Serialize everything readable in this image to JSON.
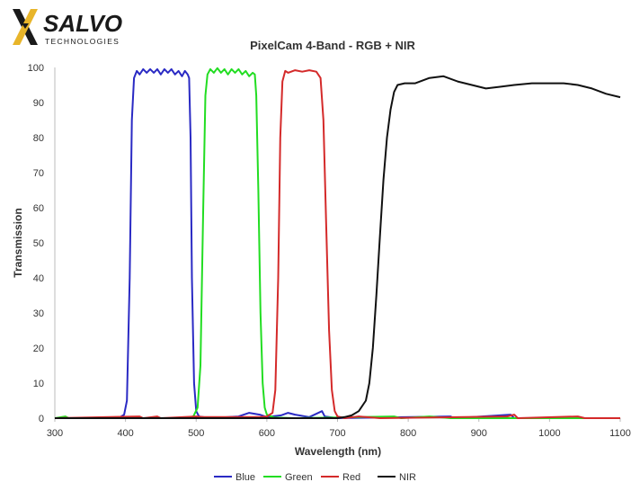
{
  "logo": {
    "brand": "SALVO",
    "sub": "TECHNOLOGIES",
    "accent_color": "#e8b52a",
    "dark_color": "#1a1a1a"
  },
  "chart_data": {
    "type": "line",
    "title": "PixelCam 4-Band - RGB + NIR",
    "xlabel": "Wavelength (nm)",
    "ylabel": "Transmission",
    "xlim": [
      300,
      1100
    ],
    "ylim": [
      0,
      100
    ],
    "x_ticks": [
      300,
      400,
      500,
      600,
      700,
      800,
      900,
      1000,
      1100
    ],
    "y_ticks": [
      0,
      10,
      20,
      30,
      40,
      50,
      60,
      70,
      80,
      90,
      100
    ],
    "grid": false,
    "legend_position": "bottom",
    "series": [
      {
        "name": "Blue",
        "color": "#2a2ac4",
        "points": [
          [
            300,
            0
          ],
          [
            390,
            0
          ],
          [
            398,
            1
          ],
          [
            402,
            5
          ],
          [
            406,
            40
          ],
          [
            409,
            85
          ],
          [
            412,
            97
          ],
          [
            416,
            99
          ],
          [
            420,
            98
          ],
          [
            425,
            99.5
          ],
          [
            430,
            98.5
          ],
          [
            435,
            99.5
          ],
          [
            440,
            98.5
          ],
          [
            445,
            99.5
          ],
          [
            450,
            98
          ],
          [
            455,
            99.5
          ],
          [
            460,
            98.5
          ],
          [
            465,
            99.5
          ],
          [
            470,
            98
          ],
          [
            475,
            99
          ],
          [
            480,
            97.5
          ],
          [
            484,
            99
          ],
          [
            488,
            98
          ],
          [
            490,
            97
          ],
          [
            492,
            80
          ],
          [
            494,
            40
          ],
          [
            497,
            10
          ],
          [
            500,
            2
          ],
          [
            504,
            0.5
          ],
          [
            520,
            0
          ],
          [
            560,
            0.5
          ],
          [
            575,
            1.5
          ],
          [
            590,
            1
          ],
          [
            600,
            0.3
          ],
          [
            620,
            0.8
          ],
          [
            630,
            1.5
          ],
          [
            640,
            1
          ],
          [
            660,
            0.3
          ],
          [
            678,
            2
          ],
          [
            682,
            0.5
          ],
          [
            700,
            0
          ],
          [
            860,
            0.5
          ],
          [
            865,
            0
          ],
          [
            945,
            1
          ],
          [
            950,
            0
          ],
          [
            1100,
            0
          ]
        ]
      },
      {
        "name": "Green",
        "color": "#22dd22",
        "points": [
          [
            300,
            0
          ],
          [
            315,
            0.5
          ],
          [
            320,
            0
          ],
          [
            480,
            0
          ],
          [
            496,
            0.5
          ],
          [
            502,
            3
          ],
          [
            506,
            15
          ],
          [
            510,
            60
          ],
          [
            513,
            92
          ],
          [
            516,
            98
          ],
          [
            520,
            99.5
          ],
          [
            525,
            98.5
          ],
          [
            530,
            99.8
          ],
          [
            535,
            98.5
          ],
          [
            540,
            99.5
          ],
          [
            545,
            98
          ],
          [
            550,
            99.5
          ],
          [
            555,
            98.5
          ],
          [
            560,
            99.5
          ],
          [
            565,
            98
          ],
          [
            570,
            99
          ],
          [
            575,
            97.5
          ],
          [
            580,
            98.5
          ],
          [
            583,
            98
          ],
          [
            585,
            92
          ],
          [
            588,
            65
          ],
          [
            591,
            30
          ],
          [
            594,
            10
          ],
          [
            597,
            3
          ],
          [
            600,
            1
          ],
          [
            610,
            0.2
          ],
          [
            640,
            0
          ],
          [
            780,
            0.5
          ],
          [
            790,
            0
          ],
          [
            830,
            0.5
          ],
          [
            860,
            0
          ],
          [
            1100,
            0
          ]
        ]
      },
      {
        "name": "Red",
        "color": "#d42a2a",
        "points": [
          [
            300,
            0
          ],
          [
            420,
            0.5
          ],
          [
            425,
            0
          ],
          [
            445,
            0.5
          ],
          [
            450,
            0
          ],
          [
            500,
            0.5
          ],
          [
            510,
            0.3
          ],
          [
            590,
            0.3
          ],
          [
            600,
            0.5
          ],
          [
            608,
            1.5
          ],
          [
            612,
            8
          ],
          [
            616,
            40
          ],
          [
            619,
            80
          ],
          [
            622,
            96
          ],
          [
            626,
            99
          ],
          [
            630,
            98.5
          ],
          [
            640,
            99.2
          ],
          [
            650,
            98.8
          ],
          [
            660,
            99.2
          ],
          [
            670,
            98.8
          ],
          [
            676,
            97
          ],
          [
            680,
            85
          ],
          [
            684,
            55
          ],
          [
            688,
            25
          ],
          [
            692,
            8
          ],
          [
            696,
            2
          ],
          [
            700,
            0.5
          ],
          [
            710,
            0
          ],
          [
            730,
            0.5
          ],
          [
            760,
            0
          ],
          [
            940,
            0.5
          ],
          [
            950,
            1
          ],
          [
            955,
            0
          ],
          [
            1040,
            0.5
          ],
          [
            1050,
            0
          ],
          [
            1100,
            0
          ]
        ]
      },
      {
        "name": "NIR",
        "color": "#111111",
        "points": [
          [
            300,
            0
          ],
          [
            700,
            0
          ],
          [
            710,
            0.3
          ],
          [
            720,
            0.8
          ],
          [
            730,
            2
          ],
          [
            740,
            5
          ],
          [
            745,
            10
          ],
          [
            750,
            20
          ],
          [
            755,
            35
          ],
          [
            760,
            52
          ],
          [
            765,
            68
          ],
          [
            770,
            80
          ],
          [
            775,
            88
          ],
          [
            780,
            93
          ],
          [
            785,
            95
          ],
          [
            795,
            95.5
          ],
          [
            810,
            95.5
          ],
          [
            830,
            97
          ],
          [
            850,
            97.5
          ],
          [
            870,
            96
          ],
          [
            890,
            95
          ],
          [
            910,
            94
          ],
          [
            930,
            94.5
          ],
          [
            950,
            95
          ],
          [
            975,
            95.5
          ],
          [
            1000,
            95.5
          ],
          [
            1020,
            95.5
          ],
          [
            1040,
            95
          ],
          [
            1060,
            94
          ],
          [
            1080,
            92.5
          ],
          [
            1100,
            91.5
          ]
        ]
      }
    ]
  }
}
